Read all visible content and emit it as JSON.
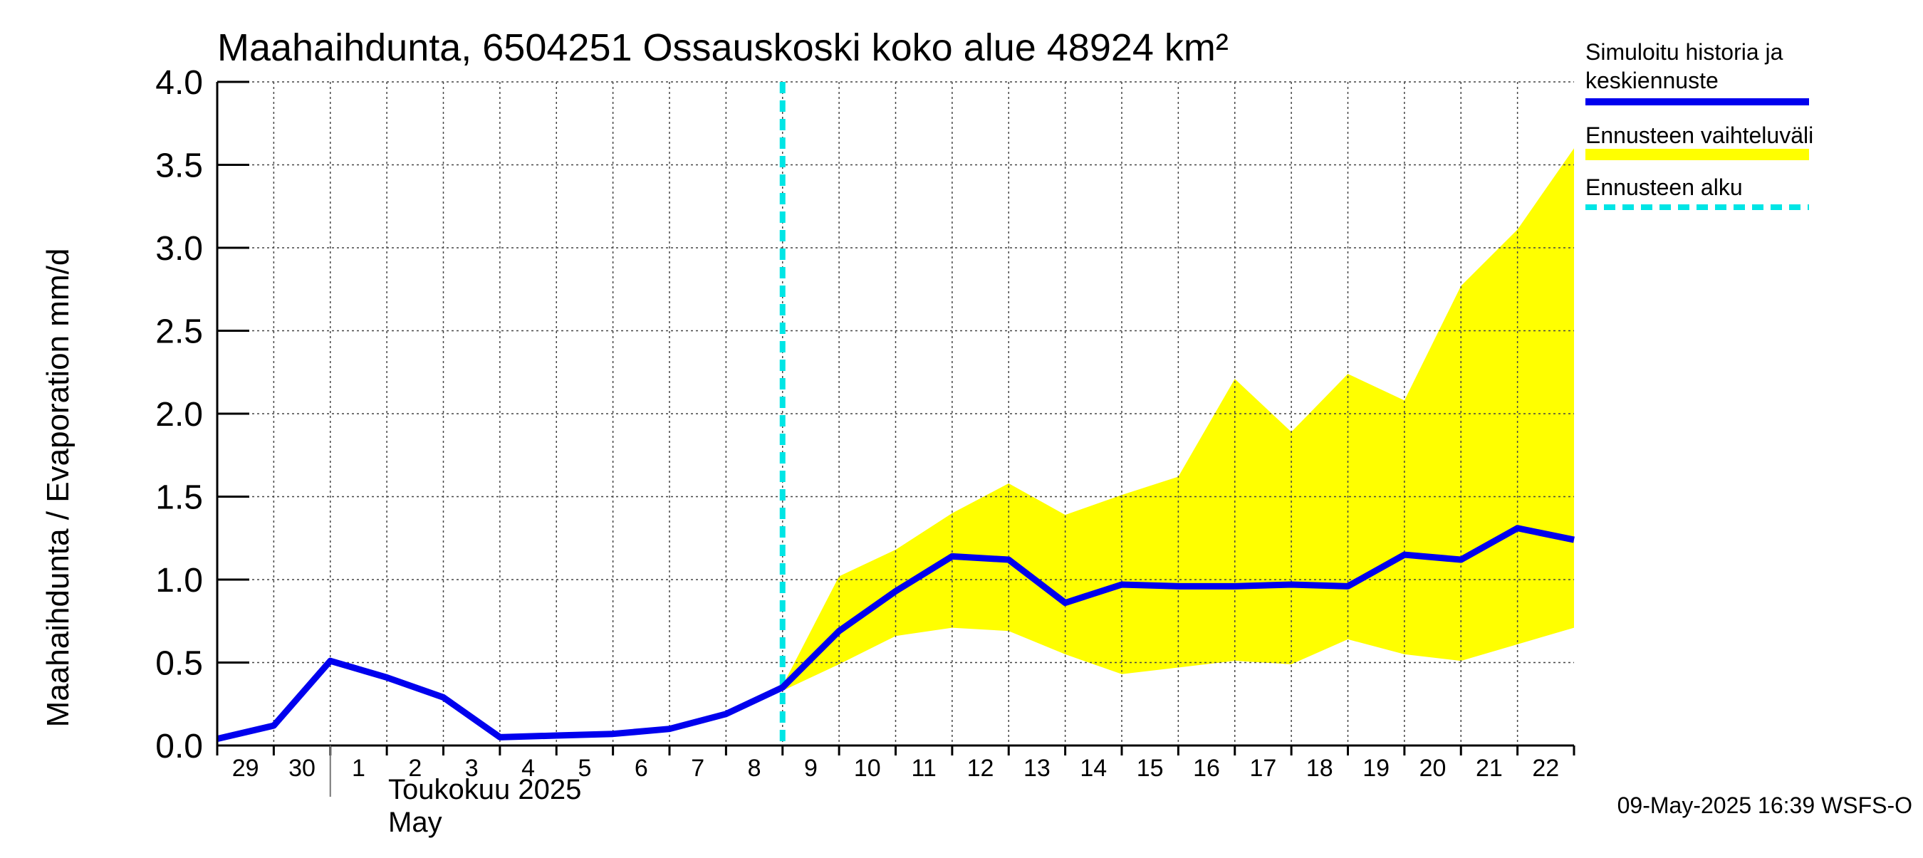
{
  "chart_data": {
    "type": "line",
    "title": "Maahaihdunta, 6504251 Ossauskoski koko alue 48924 km²",
    "ylabel": "Maahaihdunta / Evaporation   mm/d",
    "xlabel_month_fi": "Toukokuu  2025",
    "xlabel_month_en": "May",
    "ylim": [
      0.0,
      4.0
    ],
    "yticks": [
      "0.0",
      "0.5",
      "1.0",
      "1.5",
      "2.0",
      "2.5",
      "3.0",
      "3.5",
      "4.0"
    ],
    "x_labels": [
      "29",
      "30",
      "1",
      "2",
      "3",
      "4",
      "5",
      "6",
      "7",
      "8",
      "9",
      "10",
      "11",
      "12",
      "13",
      "14",
      "15",
      "16",
      "17",
      "18",
      "19",
      "20",
      "21",
      "22"
    ],
    "x_range_days": [
      0,
      24
    ],
    "grid": true,
    "legend_placement": "right",
    "forecast_start_day": 10.0,
    "series": [
      {
        "name": "Simuloitu historia ja keskiennuste",
        "color": "#0000ee",
        "x": [
          0,
          1,
          2,
          3,
          4,
          5,
          6,
          7,
          8,
          9,
          10,
          11,
          12,
          13,
          14,
          15,
          16,
          17,
          18,
          19,
          20,
          21,
          22,
          23,
          24
        ],
        "y": [
          0.04,
          0.12,
          0.51,
          0.41,
          0.29,
          0.05,
          0.06,
          0.07,
          0.1,
          0.19,
          0.35,
          0.69,
          0.93,
          1.14,
          1.12,
          0.86,
          0.97,
          0.96,
          0.96,
          0.97,
          0.96,
          1.15,
          1.12,
          1.31,
          1.24
        ]
      },
      {
        "name": "Ennusteen vaihteluväli",
        "color": "#ffff00",
        "x": [
          10,
          11,
          12,
          13,
          14,
          15,
          16,
          17,
          18,
          19,
          20,
          21,
          22,
          23,
          24
        ],
        "upper": [
          0.36,
          1.02,
          1.18,
          1.4,
          1.58,
          1.39,
          1.51,
          1.62,
          2.21,
          1.89,
          2.24,
          2.08,
          2.77,
          3.11,
          3.6
        ],
        "lower": [
          0.33,
          0.49,
          0.66,
          0.71,
          0.69,
          0.55,
          0.43,
          0.47,
          0.51,
          0.49,
          0.64,
          0.55,
          0.51,
          0.61,
          0.71
        ]
      },
      {
        "name": "Ennusteen alku",
        "color": "#00e5e5"
      }
    ]
  },
  "legend": {
    "history_line1": "Simuloitu historia ja",
    "history_line2": "keskiennuste",
    "range": "Ennusteen vaihteluväli",
    "start": "Ennusteen alku"
  },
  "footer": {
    "timestamp": "09-May-2025 16:39 WSFS-O"
  }
}
